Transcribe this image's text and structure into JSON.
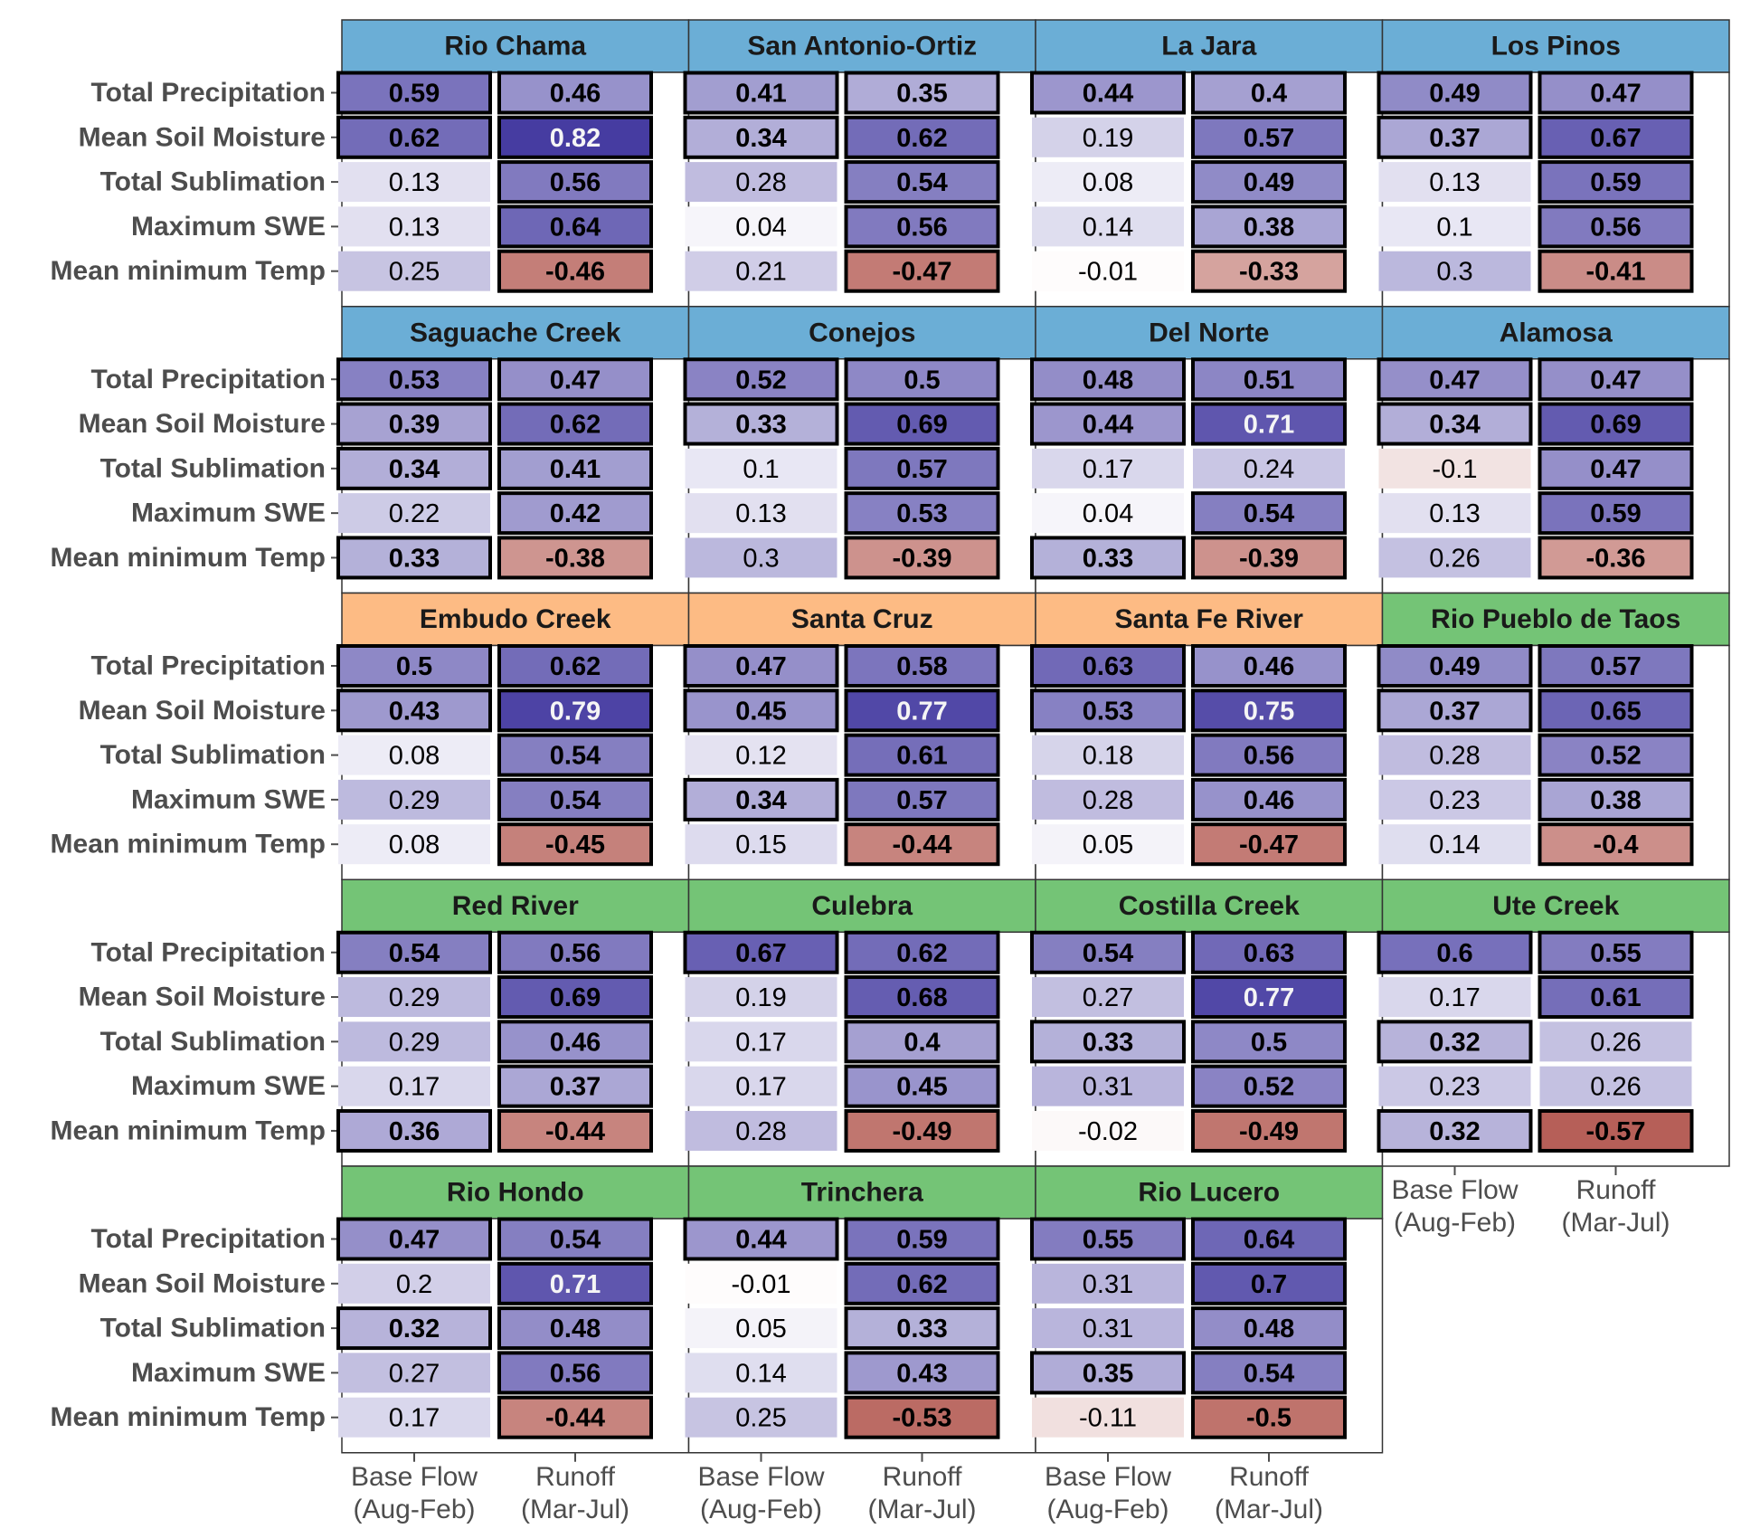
{
  "chart_data": {
    "type": "heatmap",
    "title": "",
    "rows": [
      "Total Precipitation",
      "Mean Soil Moisture",
      "Total Sublimation",
      "Maximum SWE",
      "Mean minimum Temp"
    ],
    "columns": [
      {
        "line1": "Base Flow",
        "line2": "(Aug-Feb)"
      },
      {
        "line1": "Runoff",
        "line2": "(Mar-Jul)"
      }
    ],
    "value_range": [
      -0.6,
      0.85
    ],
    "colors": {
      "strip_blue": "#6baed6",
      "strip_orange": "#fdbb84",
      "strip_green": "#74c476",
      "positive": "#3f359e",
      "negative": "#b2574f",
      "border": "#000000"
    },
    "panels": [
      {
        "name": "Rio Chama",
        "group": "blue",
        "values": [
          [
            0.59,
            0.46
          ],
          [
            0.62,
            0.82
          ],
          [
            0.13,
            0.56
          ],
          [
            0.13,
            0.64
          ],
          [
            0.25,
            -0.46
          ]
        ],
        "significant": [
          [
            1,
            1
          ],
          [
            1,
            1
          ],
          [
            0,
            1
          ],
          [
            0,
            1
          ],
          [
            0,
            1
          ]
        ]
      },
      {
        "name": "San Antonio-Ortiz",
        "group": "blue",
        "values": [
          [
            0.41,
            0.35
          ],
          [
            0.34,
            0.62
          ],
          [
            0.28,
            0.54
          ],
          [
            0.04,
            0.56
          ],
          [
            0.21,
            -0.47
          ]
        ],
        "significant": [
          [
            1,
            1
          ],
          [
            1,
            1
          ],
          [
            0,
            1
          ],
          [
            0,
            1
          ],
          [
            0,
            1
          ]
        ]
      },
      {
        "name": "La Jara",
        "group": "blue",
        "values": [
          [
            0.44,
            "0.4"
          ],
          [
            0.19,
            0.57
          ],
          [
            0.08,
            0.49
          ],
          [
            0.14,
            0.38
          ],
          [
            -0.01,
            -0.33
          ]
        ],
        "significant": [
          [
            1,
            1
          ],
          [
            0,
            1
          ],
          [
            0,
            1
          ],
          [
            0,
            1
          ],
          [
            0,
            1
          ]
        ]
      },
      {
        "name": "Los Pinos",
        "group": "blue",
        "values": [
          [
            0.49,
            0.47
          ],
          [
            0.37,
            0.67
          ],
          [
            0.13,
            0.59
          ],
          [
            "0.1",
            0.56
          ],
          [
            "0.3",
            -0.41
          ]
        ],
        "significant": [
          [
            1,
            1
          ],
          [
            1,
            1
          ],
          [
            0,
            1
          ],
          [
            0,
            1
          ],
          [
            0,
            1
          ]
        ]
      },
      {
        "name": "Saguache Creek",
        "group": "blue",
        "values": [
          [
            0.53,
            0.47
          ],
          [
            0.39,
            0.62
          ],
          [
            0.34,
            0.41
          ],
          [
            0.22,
            0.42
          ],
          [
            0.33,
            -0.38
          ]
        ],
        "significant": [
          [
            1,
            1
          ],
          [
            1,
            1
          ],
          [
            1,
            1
          ],
          [
            0,
            1
          ],
          [
            1,
            1
          ]
        ]
      },
      {
        "name": "Conejos",
        "group": "blue",
        "values": [
          [
            0.52,
            "0.5"
          ],
          [
            0.33,
            0.69
          ],
          [
            "0.1",
            0.57
          ],
          [
            0.13,
            0.53
          ],
          [
            "0.3",
            -0.39
          ]
        ],
        "significant": [
          [
            1,
            1
          ],
          [
            1,
            1
          ],
          [
            0,
            1
          ],
          [
            0,
            1
          ],
          [
            0,
            1
          ]
        ]
      },
      {
        "name": "Del Norte",
        "group": "blue",
        "values": [
          [
            0.48,
            0.51
          ],
          [
            0.44,
            0.71
          ],
          [
            0.17,
            0.24
          ],
          [
            0.04,
            0.54
          ],
          [
            0.33,
            -0.39
          ]
        ],
        "significant": [
          [
            1,
            1
          ],
          [
            1,
            1
          ],
          [
            0,
            0
          ],
          [
            0,
            1
          ],
          [
            1,
            1
          ]
        ]
      },
      {
        "name": "Alamosa",
        "group": "blue",
        "values": [
          [
            0.47,
            0.47
          ],
          [
            0.34,
            0.69
          ],
          [
            "-0.1",
            0.47
          ],
          [
            0.13,
            0.59
          ],
          [
            0.26,
            -0.36
          ]
        ],
        "significant": [
          [
            1,
            1
          ],
          [
            1,
            1
          ],
          [
            0,
            1
          ],
          [
            0,
            1
          ],
          [
            0,
            1
          ]
        ]
      },
      {
        "name": "Embudo Creek",
        "group": "orange",
        "values": [
          [
            "0.5",
            0.62
          ],
          [
            0.43,
            0.79
          ],
          [
            0.08,
            0.54
          ],
          [
            0.29,
            0.54
          ],
          [
            0.08,
            -0.45
          ]
        ],
        "significant": [
          [
            1,
            1
          ],
          [
            1,
            1
          ],
          [
            0,
            1
          ],
          [
            0,
            1
          ],
          [
            0,
            1
          ]
        ]
      },
      {
        "name": "Santa Cruz",
        "group": "orange",
        "values": [
          [
            0.47,
            0.58
          ],
          [
            0.45,
            0.77
          ],
          [
            0.12,
            0.61
          ],
          [
            0.34,
            0.57
          ],
          [
            0.15,
            -0.44
          ]
        ],
        "significant": [
          [
            1,
            1
          ],
          [
            1,
            1
          ],
          [
            0,
            1
          ],
          [
            1,
            1
          ],
          [
            0,
            1
          ]
        ]
      },
      {
        "name": "Santa Fe River",
        "group": "orange",
        "values": [
          [
            0.63,
            0.46
          ],
          [
            0.53,
            0.75
          ],
          [
            0.18,
            0.56
          ],
          [
            0.28,
            0.46
          ],
          [
            0.05,
            -0.47
          ]
        ],
        "significant": [
          [
            1,
            1
          ],
          [
            1,
            1
          ],
          [
            0,
            1
          ],
          [
            0,
            1
          ],
          [
            0,
            1
          ]
        ]
      },
      {
        "name": "Rio Pueblo de Taos",
        "group": "green",
        "values": [
          [
            0.49,
            0.57
          ],
          [
            0.37,
            0.65
          ],
          [
            0.28,
            0.52
          ],
          [
            0.23,
            0.38
          ],
          [
            0.14,
            "-0.4"
          ]
        ],
        "significant": [
          [
            1,
            1
          ],
          [
            1,
            1
          ],
          [
            0,
            1
          ],
          [
            0,
            1
          ],
          [
            0,
            1
          ]
        ]
      },
      {
        "name": "Red River",
        "group": "green",
        "values": [
          [
            0.54,
            0.56
          ],
          [
            0.29,
            0.69
          ],
          [
            0.29,
            0.46
          ],
          [
            0.17,
            0.37
          ],
          [
            0.36,
            -0.44
          ]
        ],
        "significant": [
          [
            1,
            1
          ],
          [
            0,
            1
          ],
          [
            0,
            1
          ],
          [
            0,
            1
          ],
          [
            1,
            1
          ]
        ]
      },
      {
        "name": "Culebra",
        "group": "green",
        "values": [
          [
            0.67,
            0.62
          ],
          [
            0.19,
            0.68
          ],
          [
            0.17,
            "0.4"
          ],
          [
            0.17,
            0.45
          ],
          [
            0.28,
            -0.49
          ]
        ],
        "significant": [
          [
            1,
            1
          ],
          [
            0,
            1
          ],
          [
            0,
            1
          ],
          [
            0,
            1
          ],
          [
            0,
            1
          ]
        ]
      },
      {
        "name": "Costilla Creek",
        "group": "green",
        "values": [
          [
            0.54,
            0.63
          ],
          [
            0.27,
            0.77
          ],
          [
            0.33,
            "0.5"
          ],
          [
            0.31,
            0.52
          ],
          [
            -0.02,
            -0.49
          ]
        ],
        "significant": [
          [
            1,
            1
          ],
          [
            0,
            1
          ],
          [
            1,
            1
          ],
          [
            0,
            1
          ],
          [
            0,
            1
          ]
        ]
      },
      {
        "name": "Ute Creek",
        "group": "green",
        "values": [
          [
            "0.6",
            0.55
          ],
          [
            0.17,
            0.61
          ],
          [
            0.32,
            0.26
          ],
          [
            0.23,
            0.26
          ],
          [
            0.32,
            -0.57
          ]
        ],
        "significant": [
          [
            1,
            1
          ],
          [
            0,
            1
          ],
          [
            1,
            0
          ],
          [
            0,
            0
          ],
          [
            1,
            1
          ]
        ]
      },
      {
        "name": "Rio Hondo",
        "group": "green",
        "values": [
          [
            0.47,
            0.54
          ],
          [
            "0.2",
            0.71
          ],
          [
            0.32,
            0.48
          ],
          [
            0.27,
            0.56
          ],
          [
            0.17,
            -0.44
          ]
        ],
        "significant": [
          [
            1,
            1
          ],
          [
            0,
            1
          ],
          [
            1,
            1
          ],
          [
            0,
            1
          ],
          [
            0,
            1
          ]
        ]
      },
      {
        "name": "Trinchera",
        "group": "green",
        "values": [
          [
            0.44,
            0.59
          ],
          [
            -0.01,
            0.62
          ],
          [
            0.05,
            0.33
          ],
          [
            0.14,
            0.43
          ],
          [
            0.25,
            -0.53
          ]
        ],
        "significant": [
          [
            1,
            1
          ],
          [
            0,
            1
          ],
          [
            0,
            1
          ],
          [
            0,
            1
          ],
          [
            0,
            1
          ]
        ]
      },
      {
        "name": "Rio Lucero",
        "group": "green",
        "values": [
          [
            0.55,
            0.64
          ],
          [
            0.31,
            "0.7"
          ],
          [
            0.31,
            0.48
          ],
          [
            0.35,
            0.54
          ],
          [
            -0.11,
            "-0.5"
          ]
        ],
        "significant": [
          [
            1,
            1
          ],
          [
            0,
            1
          ],
          [
            0,
            1
          ],
          [
            1,
            1
          ],
          [
            0,
            1
          ]
        ]
      }
    ]
  }
}
